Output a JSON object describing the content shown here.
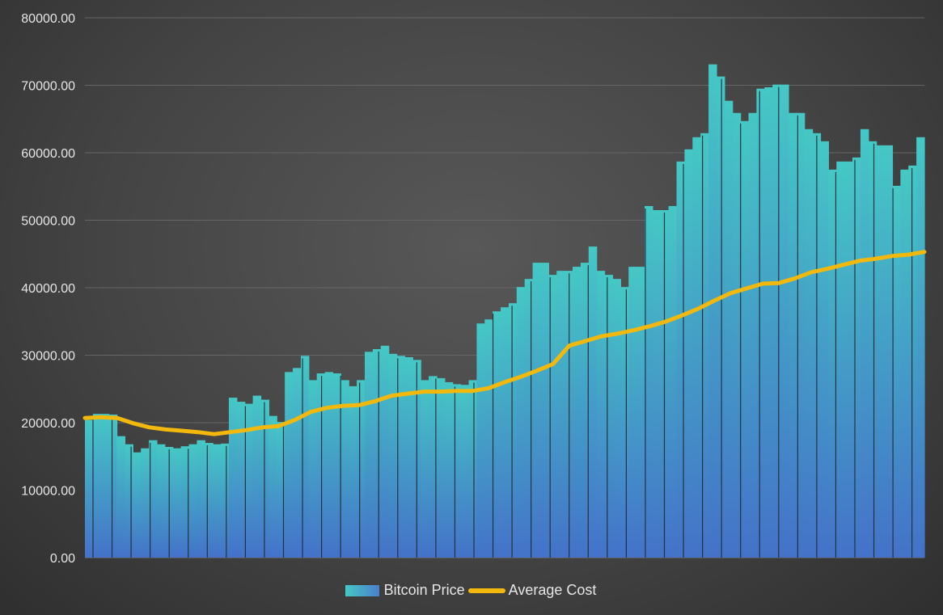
{
  "chart_data": {
    "type": "bar+line",
    "title": "",
    "xlabel": "",
    "ylabel": "",
    "ylim": [
      0,
      80000
    ],
    "yticks": [
      "0.00",
      "10000.00",
      "20000.00",
      "30000.00",
      "40000.00",
      "50000.00",
      "60000.00",
      "70000.00",
      "80000.00"
    ],
    "grid": true,
    "legend_position": "bottom",
    "series": [
      {
        "name": "Bitcoin Price",
        "type": "bar",
        "color": "#45c8c5",
        "color_bottom": "#4472c8",
        "values": [
          20400,
          21300,
          21300,
          21200,
          18000,
          16800,
          15600,
          16200,
          17400,
          16800,
          16400,
          16200,
          16500,
          16800,
          17400,
          17000,
          16800,
          16900,
          23700,
          23100,
          22800,
          24000,
          23400,
          21000,
          20100,
          27500,
          28100,
          29900,
          26300,
          27300,
          27500,
          27300,
          26300,
          25400,
          26300,
          30500,
          30900,
          31400,
          30200,
          29900,
          29700,
          29300,
          26300,
          26900,
          26600,
          26000,
          25700,
          25600,
          26300,
          34700,
          35300,
          36500,
          37100,
          37700,
          40100,
          41300,
          43700,
          43700,
          41900,
          42500,
          42500,
          43100,
          43700,
          46100,
          42500,
          41900,
          41300,
          40100,
          43100,
          43100,
          52100,
          51500,
          51500,
          52100,
          58700,
          60500,
          62300,
          62900,
          73100,
          71300,
          67700,
          65900,
          64700,
          65900,
          69500,
          69700,
          70100,
          70100,
          65900,
          65900,
          63500,
          62900,
          61700,
          57500,
          58700,
          58700,
          59300,
          63500,
          61700,
          61100,
          61100,
          55100,
          57500,
          58100,
          62300
        ]
      },
      {
        "name": "Average Cost",
        "type": "line",
        "color": "#f2b90c",
        "values": [
          20700,
          20800,
          20700,
          19900,
          19300,
          19000,
          18800,
          18600,
          18300,
          18600,
          18900,
          19300,
          19500,
          20400,
          21600,
          22200,
          22500,
          22600,
          23200,
          24000,
          24300,
          24600,
          24600,
          24700,
          24700,
          25100,
          26000,
          26800,
          27700,
          28700,
          31400,
          32100,
          32800,
          33200,
          33700,
          34300,
          35000,
          35900,
          36900,
          38100,
          39200,
          39900,
          40600,
          40700,
          41400,
          42300,
          42800,
          43400,
          44000,
          44300,
          44700,
          44900,
          45300
        ]
      }
    ]
  }
}
